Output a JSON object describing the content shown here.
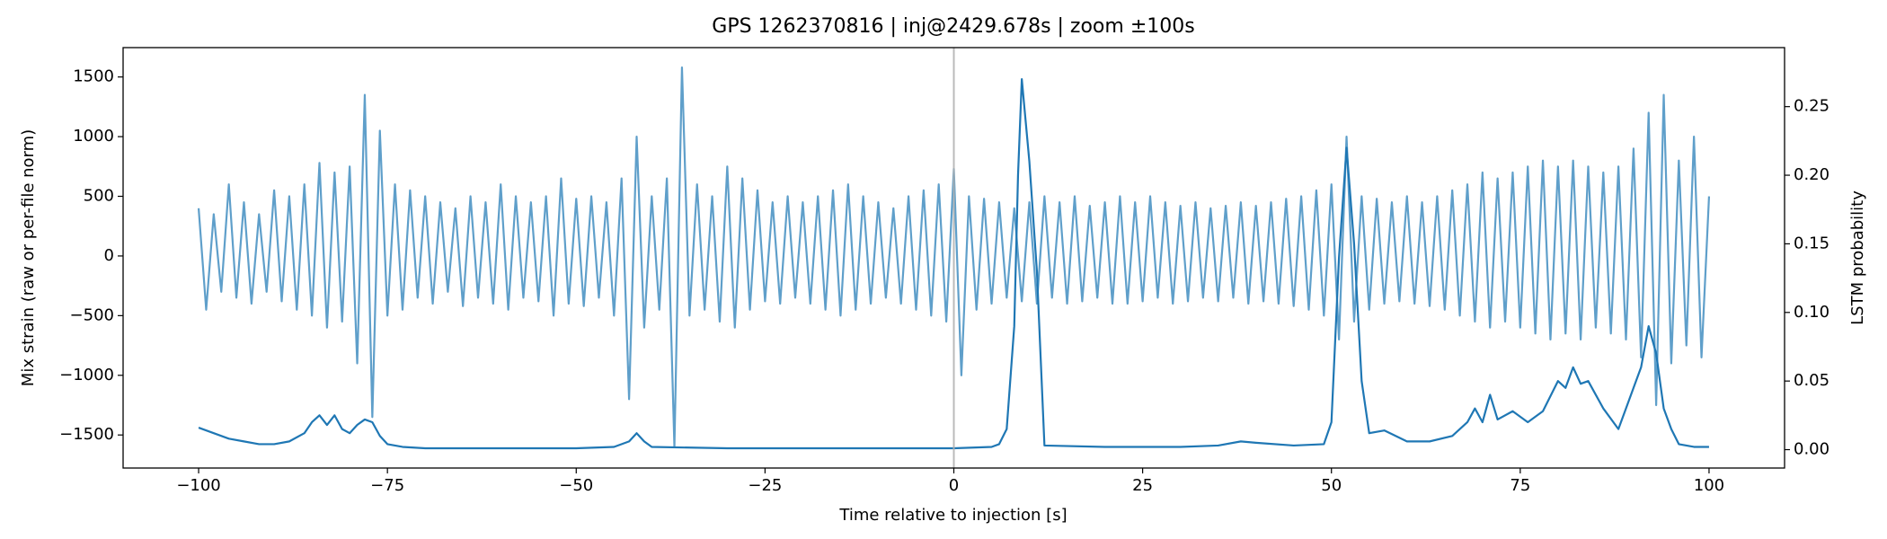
{
  "chart_data": {
    "type": "line",
    "title": "GPS 1262370816 | inj@2429.678s | zoom ±100s",
    "xlabel": "Time relative to injection [s]",
    "ylabel": "Mix strain (raw or per-file norm)",
    "y2label": "LSTM probability",
    "xlim": [
      -110,
      110
    ],
    "ylim": [
      -1777,
      1746
    ],
    "y2lim": [
      -0.0134,
      0.293
    ],
    "xticks": [
      {
        "value": -100,
        "label": "−100"
      },
      {
        "value": -75,
        "label": "−75"
      },
      {
        "value": -50,
        "label": "−50"
      },
      {
        "value": -25,
        "label": "−25"
      },
      0,
      25,
      50,
      75,
      100
    ],
    "yticks": [
      {
        "value": -1500,
        "label": "−1500"
      },
      {
        "value": -1000,
        "label": "−1000"
      },
      {
        "value": -500,
        "label": "−500"
      },
      0,
      500,
      1000,
      1500
    ],
    "y2ticks": [
      {
        "value": 0,
        "label": "0.00"
      },
      {
        "value": 0.05,
        "label": "0.05"
      },
      {
        "value": 0.1,
        "label": "0.10"
      },
      {
        "value": 0.15,
        "label": "0.15"
      },
      {
        "value": 0.2,
        "label": "0.20"
      },
      {
        "value": 0.25,
        "label": "0.25"
      }
    ],
    "vlines": [
      0
    ],
    "vline_color": "#b0b0b0",
    "series": [
      {
        "name": "strain",
        "color": "#5f9fca",
        "axis": "y",
        "x": [
          -100,
          -99,
          -98,
          -97,
          -96,
          -95,
          -94,
          -93,
          -92,
          -91,
          -90,
          -89,
          -88,
          -87,
          -86,
          -85,
          -84,
          -83,
          -82,
          -81,
          -80,
          -79,
          -78,
          -77,
          -76,
          -75,
          -74,
          -73,
          -72,
          -71,
          -70,
          -69,
          -68,
          -67,
          -66,
          -65,
          -64,
          -63,
          -62,
          -61,
          -60,
          -59,
          -58,
          -57,
          -56,
          -55,
          -54,
          -53,
          -52,
          -51,
          -50,
          -49,
          -48,
          -47,
          -46,
          -45,
          -44,
          -43,
          -42,
          -41,
          -40,
          -39,
          -38,
          -37,
          -36,
          -35,
          -34,
          -33,
          -32,
          -31,
          -30,
          -29,
          -28,
          -27,
          -26,
          -25,
          -24,
          -23,
          -22,
          -21,
          -20,
          -19,
          -18,
          -17,
          -16,
          -15,
          -14,
          -13,
          -12,
          -11,
          -10,
          -9,
          -8,
          -7,
          -6,
          -5,
          -4,
          -3,
          -2,
          -1,
          0,
          1,
          2,
          3,
          4,
          5,
          6,
          7,
          8,
          9,
          10,
          11,
          12,
          13,
          14,
          15,
          16,
          17,
          18,
          19,
          20,
          21,
          22,
          23,
          24,
          25,
          26,
          27,
          28,
          29,
          30,
          31,
          32,
          33,
          34,
          35,
          36,
          37,
          38,
          39,
          40,
          41,
          42,
          43,
          44,
          45,
          46,
          47,
          48,
          49,
          50,
          51,
          52,
          53,
          54,
          55,
          56,
          57,
          58,
          59,
          60,
          61,
          62,
          63,
          64,
          65,
          66,
          67,
          68,
          69,
          70,
          71,
          72,
          73,
          74,
          75,
          76,
          77,
          78,
          79,
          80,
          81,
          82,
          83,
          84,
          85,
          86,
          87,
          88,
          89,
          90,
          91,
          92,
          93,
          94,
          95,
          96,
          97,
          98,
          99,
          100
        ],
        "values": [
          400,
          -450,
          350,
          -300,
          600,
          -350,
          450,
          -400,
          350,
          -300,
          550,
          -380,
          500,
          -450,
          600,
          -500,
          780,
          -600,
          700,
          -550,
          750,
          -900,
          1350,
          -1350,
          1050,
          -500,
          600,
          -450,
          550,
          -350,
          500,
          -400,
          450,
          -300,
          400,
          -420,
          500,
          -350,
          450,
          -400,
          600,
          -450,
          500,
          -350,
          450,
          -380,
          500,
          -500,
          650,
          -400,
          480,
          -420,
          500,
          -350,
          450,
          -500,
          650,
          -1200,
          1000,
          -600,
          500,
          -450,
          650,
          -1600,
          1580,
          -500,
          600,
          -450,
          500,
          -550,
          750,
          -600,
          650,
          -450,
          550,
          -380,
          450,
          -400,
          500,
          -350,
          450,
          -400,
          500,
          -450,
          550,
          -500,
          600,
          -450,
          500,
          -400,
          450,
          -350,
          400,
          -400,
          500,
          -450,
          550,
          -500,
          600,
          -550,
          730,
          -1000,
          500,
          -450,
          480,
          -400,
          450,
          -350,
          400,
          -380,
          450,
          -400,
          500,
          -350,
          450,
          -400,
          500,
          -380,
          420,
          -350,
          450,
          -400,
          500,
          -400,
          450,
          -380,
          500,
          -350,
          450,
          -400,
          420,
          -380,
          450,
          -350,
          400,
          -380,
          420,
          -350,
          450,
          -400,
          420,
          -380,
          450,
          -400,
          480,
          -420,
          500,
          -450,
          550,
          -500,
          600,
          -700,
          1000,
          -550,
          500,
          -450,
          480,
          -400,
          450,
          -380,
          500,
          -400,
          450,
          -420,
          500,
          -450,
          550,
          -500,
          600,
          -550,
          700,
          -600,
          650,
          -550,
          700,
          -600,
          750,
          -650,
          800,
          -700,
          750,
          -650,
          800,
          -700,
          750,
          -600,
          700,
          -650,
          750,
          -700,
          900,
          -850,
          1200,
          -1250,
          1350,
          -900,
          800,
          -750,
          1000,
          -850,
          500
        ]
      },
      {
        "name": "LSTM",
        "color": "#1f77b4",
        "axis": "y2",
        "x": [
          -100,
          -98,
          -96,
          -94,
          -92,
          -90,
          -88,
          -86,
          -85,
          -84,
          -83,
          -82,
          -81,
          -80,
          -79,
          -78,
          -77,
          -76,
          -75,
          -73,
          -70,
          -60,
          -50,
          -45,
          -43,
          -42,
          -41,
          -40,
          -30,
          -20,
          -10,
          0,
          5,
          6,
          7,
          8,
          8.5,
          9,
          10,
          11,
          12,
          20,
          30,
          35,
          38,
          40,
          45,
          49,
          50,
          51,
          52,
          53,
          54,
          55,
          57,
          60,
          63,
          66,
          68,
          69,
          70,
          71,
          72,
          74,
          76,
          78,
          80,
          81,
          82,
          83,
          84,
          85,
          86,
          88,
          89,
          90,
          91,
          92,
          93,
          94,
          95,
          96,
          98,
          100
        ],
        "values": [
          0.016,
          0.012,
          0.008,
          0.006,
          0.004,
          0.004,
          0.006,
          0.012,
          0.02,
          0.025,
          0.018,
          0.025,
          0.015,
          0.012,
          0.018,
          0.022,
          0.02,
          0.01,
          0.004,
          0.002,
          0.001,
          0.001,
          0.001,
          0.002,
          0.006,
          0.012,
          0.006,
          0.002,
          0.001,
          0.001,
          0.001,
          0.001,
          0.002,
          0.004,
          0.015,
          0.09,
          0.2,
          0.27,
          0.21,
          0.13,
          0.003,
          0.002,
          0.002,
          0.003,
          0.006,
          0.005,
          0.003,
          0.004,
          0.02,
          0.14,
          0.22,
          0.15,
          0.05,
          0.012,
          0.014,
          0.006,
          0.006,
          0.01,
          0.02,
          0.03,
          0.02,
          0.04,
          0.022,
          0.028,
          0.02,
          0.028,
          0.05,
          0.045,
          0.06,
          0.048,
          0.05,
          0.04,
          0.03,
          0.015,
          0.03,
          0.045,
          0.06,
          0.09,
          0.07,
          0.03,
          0.015,
          0.004,
          0.002,
          0.002
        ]
      }
    ]
  }
}
